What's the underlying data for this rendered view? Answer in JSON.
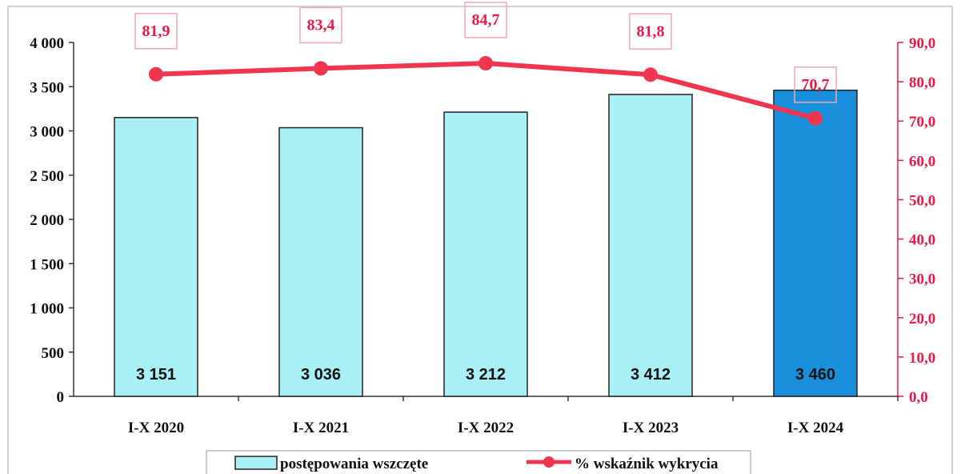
{
  "chart_data": {
    "type": "bar",
    "categories": [
      "I-X 2020",
      "I-X 2021",
      "I-X 2022",
      "I-X 2023",
      "I-X 2024"
    ],
    "series": [
      {
        "name": "postępowania wszczęte",
        "type": "bar",
        "axis": "left",
        "values": [
          3151,
          3036,
          3212,
          3412,
          3460
        ],
        "labels": [
          "3 151",
          "3 036",
          "3 212",
          "3 412",
          "3 460"
        ],
        "color": "#a8f0f6",
        "highlight_color": "#1a8fdc"
      },
      {
        "name": "% wskaźnik wykrycia",
        "type": "line",
        "axis": "right",
        "values": [
          81.9,
          83.4,
          84.7,
          81.8,
          70.7
        ],
        "labels": [
          "81,9",
          "83,4",
          "84,7",
          "81,8",
          "70,7"
        ],
        "color": "#f0364f"
      }
    ],
    "y_left": {
      "ylim": [
        0,
        4000
      ],
      "ticks": [
        0,
        500,
        1000,
        1500,
        2000,
        2500,
        3000,
        3500,
        4000
      ],
      "tick_labels": [
        "0",
        "500",
        "1 000",
        "1 500",
        "2 000",
        "2 500",
        "3 000",
        "3 500",
        "4 000"
      ]
    },
    "y_right": {
      "ylim": [
        0,
        90
      ],
      "ticks": [
        0,
        10,
        20,
        30,
        40,
        50,
        60,
        70,
        80,
        90
      ],
      "tick_labels": [
        "0,0",
        "10,0",
        "20,0",
        "30,0",
        "40,0",
        "50,0",
        "60,0",
        "70,0",
        "80,0",
        "90,0"
      ]
    },
    "legend": {
      "placement": "bottom",
      "entries": [
        "postępowania wszczęte",
        "% wskaźnik wykrycia"
      ]
    },
    "grid": false
  }
}
